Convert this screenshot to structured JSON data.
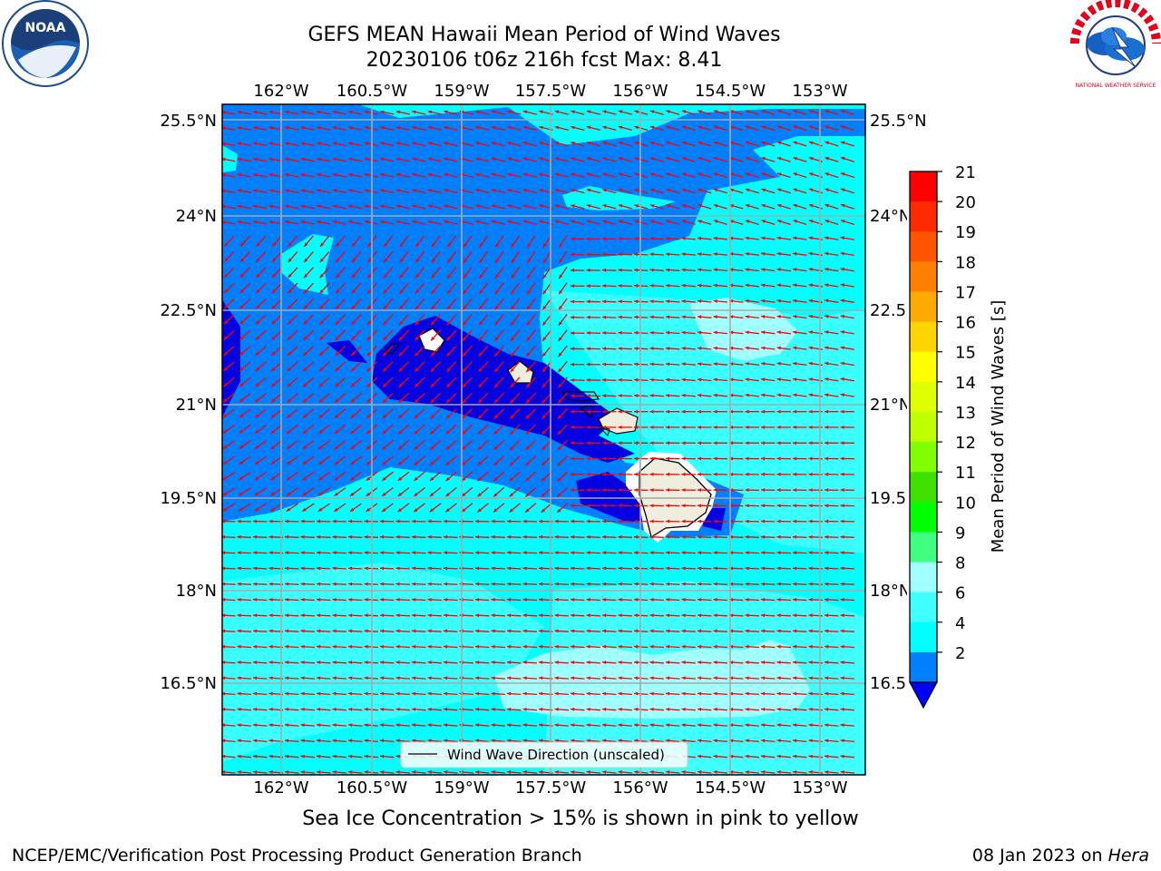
{
  "header": {
    "title_line1": "GEFS MEAN Hawaii Mean Period of Wind Waves",
    "title_line2": "20230106 t06z 216h fcst   Max: 8.41"
  },
  "map": {
    "lon_labels": [
      "162°W",
      "160.5°W",
      "159°W",
      "157.5°W",
      "156°W",
      "154.5°W",
      "153°W"
    ],
    "lat_labels": [
      "25.5°N",
      "24°N",
      "22.5°N",
      "21°N",
      "19.5°N",
      "18°N",
      "16.5°N"
    ],
    "legend_label": "Wind Wave Direction (unscaled)",
    "arrow_color": "#ff0000",
    "ocean_colors": {
      "2-4": "#0080ff",
      "4-6": "#00ffff",
      "6-8": "#40ffff",
      "8-9": "#a0ffff",
      "below": "#0000e0"
    },
    "land_color": "#efedde"
  },
  "colorbar": {
    "label": "Mean Period of Wind Waves [s]",
    "ticks": [
      "21",
      "20",
      "19",
      "18",
      "17",
      "16",
      "15",
      "14",
      "13",
      "12",
      "11",
      "10",
      "9",
      "8",
      "6",
      "4",
      "2"
    ],
    "colors": [
      "#ff0000",
      "#ff2a00",
      "#ff5500",
      "#ff8000",
      "#ffaa00",
      "#ffd400",
      "#ffff00",
      "#e0ff00",
      "#c0ff00",
      "#80ff00",
      "#40e000",
      "#00ff00",
      "#40ff80",
      "#a0ffff",
      "#40ffff",
      "#00ffff",
      "#0080ff"
    ],
    "under_color": "#0000ff"
  },
  "logos": {
    "noaa": "NOAA",
    "nws": "NATIONAL WEATHER SERVICE"
  },
  "subtitle": "Sea Ice Concentration > 15% is shown in pink to yellow",
  "footer": {
    "left": "NCEP/EMC/Verification Post Processing Product Generation Branch",
    "right_prefix": "08 Jan 2023 on ",
    "right_italic": "Hera"
  }
}
